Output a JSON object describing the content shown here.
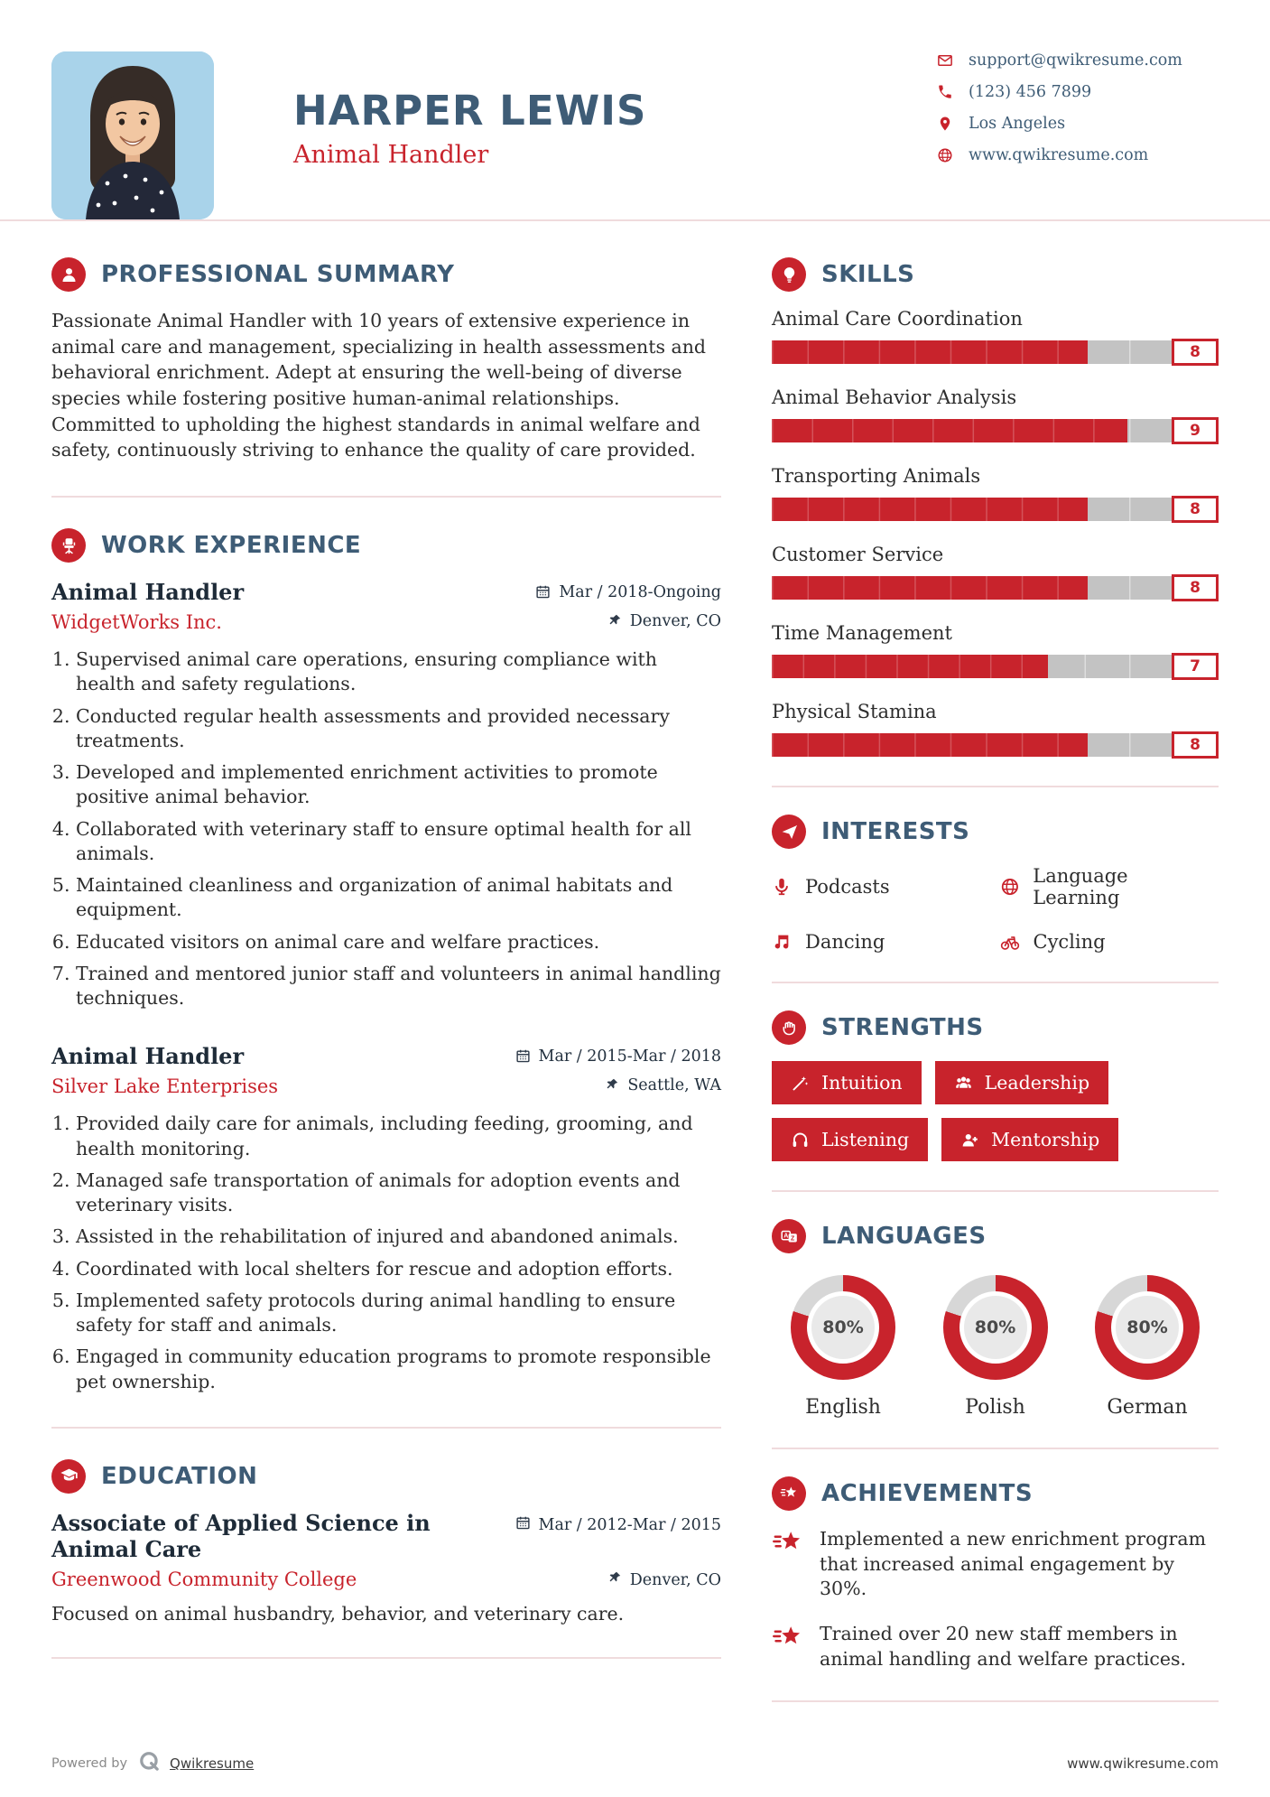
{
  "colors": {
    "accent": "#c8232c",
    "heading": "#3e5c76",
    "divider": "#f0dbdd",
    "ink": "#2d2d2d"
  },
  "header": {
    "name": "HARPER LEWIS",
    "title": "Animal Handler",
    "contact": [
      {
        "icon": "envelope",
        "text": "support@qwikresume.com"
      },
      {
        "icon": "phone",
        "text": "(123) 456 7899"
      },
      {
        "icon": "map-marker",
        "text": "Los Angeles"
      },
      {
        "icon": "globe",
        "text": "www.qwikresume.com"
      }
    ]
  },
  "summary": {
    "heading": "PROFESSIONAL SUMMARY",
    "text": "Passionate Animal Handler with 10 years of extensive experience in animal care and management, specializing in health assessments and behavioral enrichment. Adept at ensuring the well-being of diverse species while fostering positive human-animal relationships. Committed to upholding the highest standards in animal welfare and safety, continuously striving to enhance the quality of care provided."
  },
  "work": {
    "heading": "WORK EXPERIENCE",
    "jobs": [
      {
        "title": "Animal Handler",
        "company": "WidgetWorks Inc.",
        "dates": "Mar / 2018-Ongoing",
        "location": "Denver, CO",
        "bullets": [
          "Supervised animal care operations, ensuring compliance with health and safety regulations.",
          "Conducted regular health assessments and provided necessary treatments.",
          "Developed and implemented enrichment activities to promote positive animal behavior.",
          "Collaborated with veterinary staff to ensure optimal health for all animals.",
          "Maintained cleanliness and organization of animal habitats and equipment.",
          "Educated visitors on animal care and welfare practices.",
          "Trained and mentored junior staff and volunteers in animal handling techniques."
        ]
      },
      {
        "title": "Animal Handler",
        "company": "Silver Lake Enterprises",
        "dates": "Mar / 2015-Mar / 2018",
        "location": "Seattle, WA",
        "bullets": [
          "Provided daily care for animals, including feeding, grooming, and health monitoring.",
          "Managed safe transportation of animals for adoption events and veterinary visits.",
          "Assisted in the rehabilitation of injured and abandoned animals.",
          "Coordinated with local shelters for rescue and adoption efforts.",
          "Implemented safety protocols during animal handling to ensure safety for staff and animals.",
          "Engaged in community education programs to promote responsible pet ownership."
        ]
      }
    ]
  },
  "education": {
    "heading": "EDUCATION",
    "degree": "Associate of Applied Science in Animal Care",
    "school": "Greenwood Community College",
    "dates": "Mar / 2012-Mar / 2015",
    "location": "Denver, CO",
    "description": "Focused on animal husbandry, behavior, and veterinary care."
  },
  "skills": {
    "heading": "SKILLS",
    "items": [
      {
        "name": "Animal Care Coordination",
        "rating": 8
      },
      {
        "name": "Animal Behavior Analysis",
        "rating": 9
      },
      {
        "name": "Transporting Animals",
        "rating": 8
      },
      {
        "name": "Customer Service",
        "rating": 8
      },
      {
        "name": "Time Management",
        "rating": 7
      },
      {
        "name": "Physical Stamina",
        "rating": 8
      }
    ]
  },
  "interests": {
    "heading": "INTERESTS",
    "items": [
      {
        "icon": "microphone",
        "label": "Podcasts"
      },
      {
        "icon": "globe",
        "label": "Language Learning"
      },
      {
        "icon": "music-note",
        "label": "Dancing"
      },
      {
        "icon": "bicycle",
        "label": "Cycling"
      }
    ]
  },
  "strengths": {
    "heading": "STRENGTHS",
    "items": [
      {
        "icon": "magic-wand",
        "label": "Intuition"
      },
      {
        "icon": "users",
        "label": "Leadership"
      },
      {
        "icon": "headphones",
        "label": "Listening"
      },
      {
        "icon": "user-plus",
        "label": "Mentorship"
      }
    ]
  },
  "languages": {
    "heading": "LANGUAGES",
    "items": [
      {
        "name": "English",
        "percent": 80
      },
      {
        "name": "Polish",
        "percent": 80
      },
      {
        "name": "German",
        "percent": 80
      }
    ]
  },
  "achievements": {
    "heading": "ACHIEVEMENTS",
    "items": [
      "Implemented a new enrichment program that increased animal engagement by 30%.",
      "Trained over 20 new staff members in animal handling and welfare practices."
    ]
  },
  "footer": {
    "powered_by": "Powered by",
    "brand": "Qwikresume",
    "website": "www.qwikresume.com"
  }
}
